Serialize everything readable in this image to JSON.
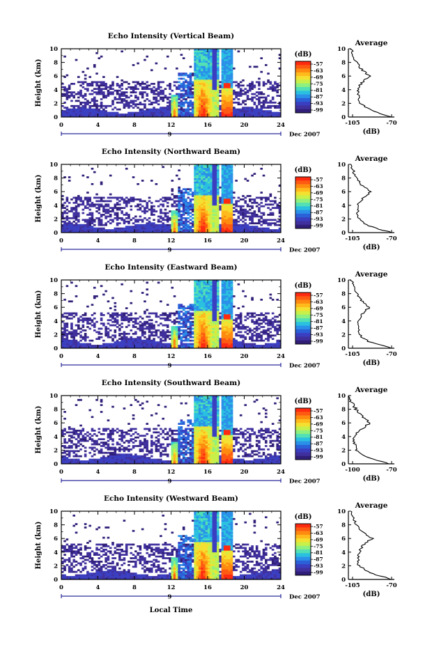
{
  "figure": {
    "xlabel": "Local Time",
    "date_label": "Dec 2007",
    "day_label": "9",
    "colorbar_unit": "(dB)",
    "colorbar_ticks": [
      "-57",
      "-63",
      "-69",
      "-75",
      "-81",
      "-87",
      "-93",
      "-99"
    ],
    "colorbar_colors": [
      "#ff2a10",
      "#ff5a12",
      "#ff8a10",
      "#ffba1c",
      "#f4e030",
      "#c8f04a",
      "#8ef07e",
      "#52e0b4",
      "#2ac0e0",
      "#2a90e8",
      "#2a60d8",
      "#3a3ec0",
      "#40309e",
      "#301e78"
    ],
    "accent": "#2a2a9a"
  },
  "chart_data": [
    {
      "type": "heatmap",
      "title": "Echo Intensity (Vertical Beam)",
      "ylabel": "Height (km)",
      "x": [
        0,
        4,
        8,
        12,
        16,
        20,
        24
      ],
      "xlim": [
        0,
        24
      ],
      "ylim": [
        0,
        10
      ],
      "yticks": [
        0,
        2,
        4,
        6,
        8,
        10
      ],
      "clim": [
        -99,
        -57
      ],
      "profile": {
        "title": "Average",
        "xlabel": "(dB)",
        "xticks": [
          "-105",
          "-70"
        ],
        "xlim": [
          -105,
          -70
        ],
        "height_km": [
          0,
          1,
          2,
          3,
          4,
          5,
          6,
          7,
          8,
          9,
          10
        ],
        "avg_db": [
          -72,
          -88,
          -96,
          -97,
          -98,
          -95,
          -89,
          -95,
          -99,
          -101,
          -103
        ]
      }
    },
    {
      "type": "heatmap",
      "title": "Echo Intensity (Northward Beam)",
      "ylabel": "Height (km)",
      "x": [
        0,
        4,
        8,
        12,
        16,
        20,
        24
      ],
      "xlim": [
        0,
        24
      ],
      "ylim": [
        0,
        10
      ],
      "yticks": [
        0,
        2,
        4,
        6,
        8,
        10
      ],
      "clim": [
        -99,
        -57
      ],
      "profile": {
        "title": "Average",
        "xlabel": "(dB)",
        "xticks": [
          "-105",
          "-70"
        ],
        "xlim": [
          -105,
          -70
        ],
        "height_km": [
          0,
          1,
          2,
          3,
          4,
          5,
          6,
          7,
          8,
          9,
          10
        ],
        "avg_db": [
          -72,
          -90,
          -97,
          -98,
          -98,
          -94,
          -88,
          -95,
          -99,
          -101,
          -103
        ]
      }
    },
    {
      "type": "heatmap",
      "title": "Echo Intensity (Eastward Beam)",
      "ylabel": "Height (km)",
      "x": [
        0,
        4,
        8,
        12,
        16,
        20,
        24
      ],
      "xlim": [
        0,
        24
      ],
      "ylim": [
        0,
        10
      ],
      "yticks": [
        0,
        2,
        4,
        6,
        8,
        10
      ],
      "clim": [
        -99,
        -57
      ],
      "profile": {
        "title": "Average",
        "xlabel": "(dB)",
        "xticks": [
          "-105",
          "-70"
        ],
        "xlim": [
          -105,
          -70
        ],
        "height_km": [
          0,
          1,
          2,
          3,
          4,
          5,
          6,
          7,
          8,
          9,
          10
        ],
        "avg_db": [
          -72,
          -90,
          -97,
          -97,
          -98,
          -95,
          -89,
          -95,
          -99,
          -101,
          -103
        ]
      }
    },
    {
      "type": "heatmap",
      "title": "Echo Intensity (Southward Beam)",
      "ylabel": "Height (km)",
      "x": [
        0,
        4,
        8,
        12,
        16,
        20,
        24
      ],
      "xlim": [
        0,
        24
      ],
      "ylim": [
        0,
        10
      ],
      "yticks": [
        0,
        2,
        4,
        6,
        8,
        10
      ],
      "clim": [
        -99,
        -57
      ],
      "profile": {
        "title": "Average",
        "xlabel": "(dB)",
        "xticks": [
          "-100",
          "-70"
        ],
        "xlim": [
          -100,
          -70
        ],
        "height_km": [
          0,
          1,
          2,
          3,
          4,
          5,
          6,
          7,
          8,
          9,
          10
        ],
        "avg_db": [
          -73,
          -89,
          -95,
          -96,
          -96,
          -92,
          -86,
          -91,
          -95,
          -98,
          -99
        ]
      }
    },
    {
      "type": "heatmap",
      "title": "Echo Intensity (Westward Beam)",
      "ylabel": "Height (km)",
      "x": [
        0,
        4,
        8,
        12,
        16,
        20,
        24
      ],
      "xlim": [
        0,
        24
      ],
      "ylim": [
        0,
        10
      ],
      "yticks": [
        0,
        2,
        4,
        6,
        8,
        10
      ],
      "clim": [
        -99,
        -57
      ],
      "profile": {
        "title": "Average",
        "xlabel": "(dB)",
        "xticks": [
          "-105",
          "-70"
        ],
        "xlim": [
          -105,
          -70
        ],
        "height_km": [
          0,
          1,
          2,
          3,
          4,
          5,
          6,
          7,
          8,
          9,
          10
        ],
        "avg_db": [
          -72,
          -89,
          -97,
          -98,
          -97,
          -94,
          -87,
          -94,
          -99,
          -101,
          -103
        ]
      }
    }
  ]
}
